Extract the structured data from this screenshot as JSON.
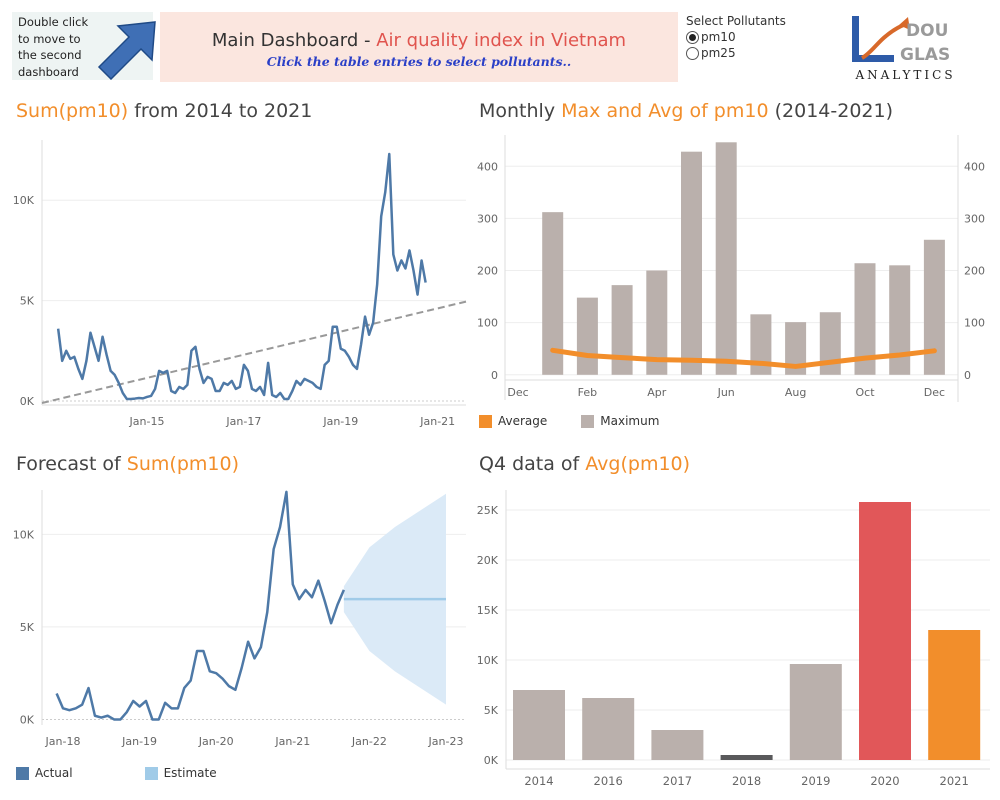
{
  "nav": {
    "text": "Double click to move to the second dashboard"
  },
  "header": {
    "title_part1": "Main Dashboard",
    "title_sep": " - ",
    "title_part2": "Air quality index in Vietnam",
    "subtitle": "Click the table entries to select pollutants.."
  },
  "pollutants": {
    "label": "Select Pollutants",
    "options": [
      "pm10",
      "pm25"
    ],
    "selected": "pm10"
  },
  "logo": {
    "letters_top": "DOU",
    "letters_mid": "GLAS",
    "text": "ANALYTICS"
  },
  "colors": {
    "line": "#4e79a7",
    "estimate": "#a0cbe8",
    "orange": "#f28e2b",
    "gray": "#bab0ac",
    "red": "#e15759",
    "dark": "#59595b"
  },
  "panels": {
    "p1": {
      "title_a": "Sum(pm10)",
      "title_b": " from 2014 to 2021"
    },
    "p2": {
      "title_a": "Monthly ",
      "title_b": "Max and Avg of pm10",
      "title_c": " (2014-2021)"
    },
    "p3": {
      "title_a": "Forecast of ",
      "title_b": "Sum(pm10)"
    },
    "p4": {
      "title_a": "Q4 data of ",
      "title_b": "Avg(pm10)"
    }
  },
  "legends": {
    "p2": [
      "Average",
      "Maximum"
    ],
    "p3": [
      "Actual",
      "Estimate"
    ]
  },
  "chart_data": [
    {
      "id": "sum-pm10-line",
      "type": "line",
      "title": "Sum(pm10) from 2014 to 2021",
      "x_tick_labels": [
        "Jan-15",
        "Jan-17",
        "Jan-19",
        "Jan-21"
      ],
      "y_tick_labels": [
        "0K",
        "5K",
        "10K"
      ],
      "ylim": [
        -200,
        13000
      ],
      "series": [
        {
          "values": [
            3600,
            2000,
            2500,
            2100,
            2200,
            1600,
            1100,
            2000,
            3400,
            2700,
            2000,
            3200,
            2300,
            1500,
            1300,
            900,
            400,
            100,
            100,
            120,
            150,
            130,
            200,
            250,
            600,
            1500,
            1400,
            1500,
            500,
            400,
            700,
            600,
            800,
            2500,
            2700,
            1600,
            900,
            1200,
            1100,
            500,
            500,
            900,
            800,
            1000,
            600,
            700,
            1800,
            1500,
            600,
            500,
            700,
            300,
            1900,
            300,
            200,
            400,
            100,
            100,
            500,
            1000,
            800,
            1100,
            1000,
            900,
            700,
            600,
            1800,
            2000,
            3700,
            3700,
            2600,
            2500,
            2200,
            1800,
            1600,
            2800,
            4200,
            3300,
            3900,
            5800,
            9200,
            10400,
            12300,
            7300,
            6500,
            7000,
            6600,
            7500,
            6500,
            5300,
            7000,
            5900
          ],
          "x_range_months": [
            -10,
            83
          ]
        }
      ],
      "trend_line": {
        "from": [
          -14,
          -100
        ],
        "to": [
          91,
          4950
        ]
      }
    },
    {
      "id": "monthly-max-avg",
      "type": "bar",
      "title": "Monthly Max and Avg of pm10 (2014-2021)",
      "categories": [
        "Dec",
        "Jan",
        "Feb",
        "Mar",
        "Apr",
        "May",
        "Jun",
        "Jul",
        "Aug",
        "Sep",
        "Oct",
        "Nov",
        "Dec"
      ],
      "x_tick_labels": [
        "Dec",
        "Feb",
        "Apr",
        "Jun",
        "Aug",
        "Oct",
        "Dec"
      ],
      "y_tick_labels": [
        "0",
        "100",
        "200",
        "300",
        "400"
      ],
      "ylim": [
        -10,
        460
      ],
      "series": [
        {
          "name": "Maximum",
          "type": "bar",
          "values": [
            null,
            312,
            148,
            172,
            200,
            428,
            446,
            116,
            101,
            120,
            214,
            210,
            259
          ]
        },
        {
          "name": "Average",
          "type": "line",
          "values": [
            null,
            47,
            37,
            33,
            29,
            28,
            26,
            22,
            16,
            24,
            32,
            38,
            46
          ]
        }
      ]
    },
    {
      "id": "forecast-pm10",
      "type": "area",
      "title": "Forecast of Sum(pm10)",
      "x_tick_labels": [
        "Jan-18",
        "Jan-19",
        "Jan-20",
        "Jan-21",
        "Jan-22",
        "Jan-23"
      ],
      "y_tick_labels": [
        "0K",
        "5K",
        "10K"
      ],
      "ylim": [
        -300,
        12400
      ],
      "series": [
        {
          "name": "Actual",
          "values": [
            1400,
            600,
            500,
            600,
            800,
            1700,
            200,
            100,
            200,
            0,
            0,
            400,
            1000,
            700,
            1000,
            0,
            0,
            900,
            600,
            600,
            1700,
            2100,
            3700,
            3700,
            2600,
            2500,
            2200,
            1800,
            1600,
            2800,
            4200,
            3300,
            3900,
            5800,
            9200,
            10400,
            12300,
            7300,
            6500,
            7000,
            6600,
            7500,
            6400,
            5200,
            6200,
            7000
          ],
          "x_start_month": -1
        },
        {
          "name": "Estimate",
          "value": 6500,
          "x_months": [
            44,
            60
          ],
          "band_upper": [
            7200,
            9300,
            10400,
            11300,
            12200
          ],
          "band_lower": [
            5800,
            3700,
            2600,
            1700,
            800
          ]
        }
      ]
    },
    {
      "id": "q4-avg-pm10",
      "type": "bar",
      "title": "Q4 data of Avg(pm10)",
      "categories": [
        "2014",
        "2016",
        "2017",
        "2018",
        "2019",
        "2020",
        "2021"
      ],
      "y_tick_labels": [
        "0K",
        "5K",
        "10K",
        "15K",
        "20K",
        "25K"
      ],
      "ylim": [
        -300,
        27000
      ],
      "series": [
        {
          "values": [
            7000,
            6200,
            3000,
            500,
            9600,
            25800,
            13000
          ],
          "colors": [
            "gray",
            "gray",
            "gray",
            "dark",
            "gray",
            "red",
            "orange"
          ]
        }
      ]
    }
  ]
}
